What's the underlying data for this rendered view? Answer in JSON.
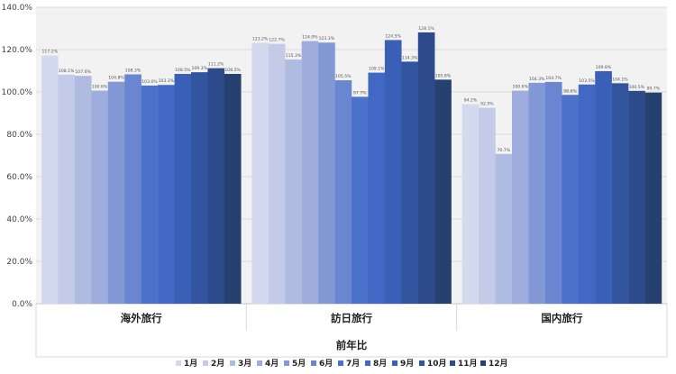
{
  "chart_data": {
    "type": "bar",
    "title": "",
    "xlabel": "前年比",
    "ylabel": "",
    "ylim": [
      0,
      140
    ],
    "y_ticks": [
      "0.0%",
      "20.0%",
      "40.0%",
      "60.0%",
      "80.0%",
      "100.0%",
      "120.0%",
      "140.0%"
    ],
    "y_tick_values": [
      0,
      20,
      40,
      60,
      80,
      100,
      120,
      140
    ],
    "grid": true,
    "legend_position": "bottom",
    "categories": [
      "海外旅行",
      "訪日旅行",
      "国内旅行"
    ],
    "series": [
      {
        "name": "1月",
        "color": "#d3d9ef",
        "values": [
          117.2,
          123.2,
          94.2
        ],
        "labels": [
          "117.2%",
          "123.2%",
          "94.2%"
        ]
      },
      {
        "name": "2月",
        "color": "#c3cbe9",
        "values": [
          108.1,
          122.7,
          92.5
        ],
        "labels": [
          "108.1%",
          "122.7%",
          "92.5%"
        ]
      },
      {
        "name": "3月",
        "color": "#b0bbe2",
        "values": [
          107.6,
          115.3,
          70.7
        ],
        "labels": [
          "107.6%",
          "115.3%",
          "70.7%"
        ]
      },
      {
        "name": "4月",
        "color": "#9eadde",
        "values": [
          100.6,
          124.0,
          100.6
        ],
        "labels": [
          "100.6%",
          "124.0%",
          "100.6%"
        ]
      },
      {
        "name": "5月",
        "color": "#8399d6",
        "values": [
          104.8,
          123.3,
          104.3
        ],
        "labels": [
          "104.8%",
          "123.3%",
          "104.3%"
        ]
      },
      {
        "name": "6月",
        "color": "#6a86d0",
        "values": [
          108.3,
          105.5,
          104.7
        ],
        "labels": [
          "108.3%",
          "105.5%",
          "104.7%"
        ]
      },
      {
        "name": "7月",
        "color": "#4a72cb",
        "values": [
          103.0,
          97.7,
          98.6
        ],
        "labels": [
          "103.0%",
          "97.7%",
          "98.6%"
        ]
      },
      {
        "name": "8月",
        "color": "#4168c4",
        "values": [
          103.3,
          109.1,
          103.5
        ],
        "labels": [
          "103.3%",
          "109.1%",
          "103.5%"
        ]
      },
      {
        "name": "9月",
        "color": "#3a5fb6",
        "values": [
          108.5,
          124.5,
          109.8
        ],
        "labels": [
          "108.5%",
          "124.5%",
          "109.8%"
        ]
      },
      {
        "name": "10月",
        "color": "#33559f",
        "values": [
          109.3,
          114.3,
          104.1
        ],
        "labels": [
          "109.3%",
          "114.3%",
          "104.1%"
        ]
      },
      {
        "name": "11月",
        "color": "#2d4a8a",
        "values": [
          111.2,
          128.1,
          100.5
        ],
        "labels": [
          "111.2%",
          "128.1%",
          "100.5%"
        ]
      },
      {
        "name": "12月",
        "color": "#26406f",
        "values": [
          108.5,
          105.8,
          99.7
        ],
        "labels": [
          "108.5%",
          "105.8%",
          "99.7%"
        ]
      }
    ]
  }
}
